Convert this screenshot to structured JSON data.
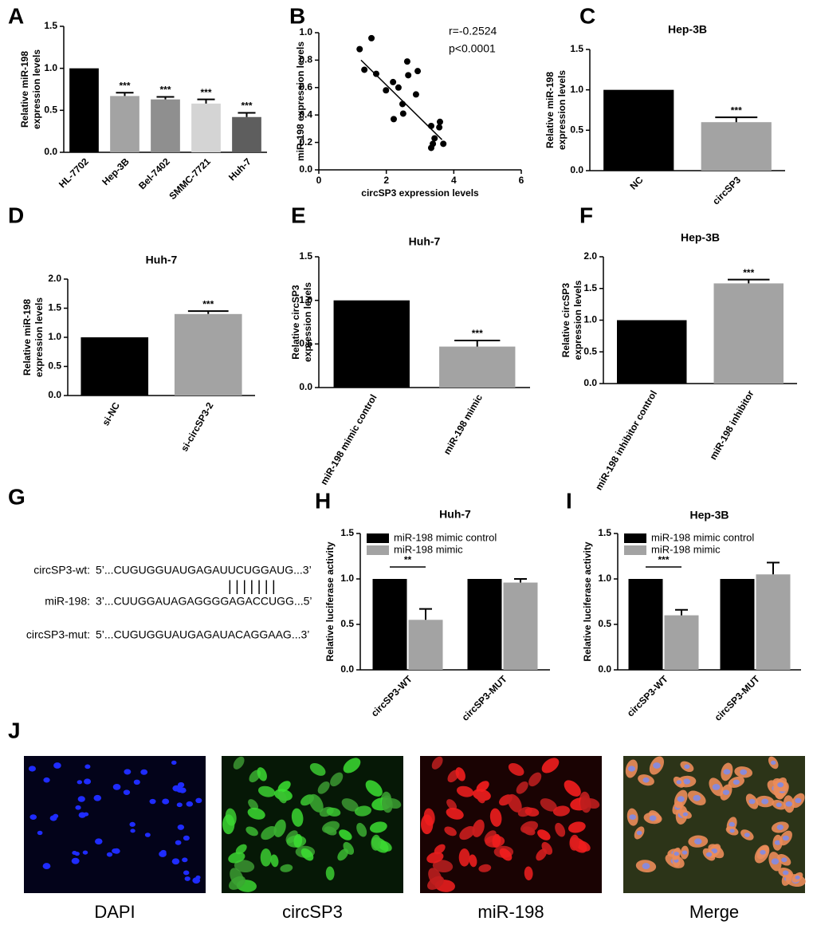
{
  "chart_data": [
    {
      "type": "bar",
      "panel": "A",
      "ylabel": [
        "Relative miR-198",
        "expression levels"
      ],
      "categories": [
        "HL-7702",
        "Hep-3B",
        "Bel-7402",
        "SMMC-7721",
        "Huh-7"
      ],
      "values": [
        1.0,
        0.67,
        0.63,
        0.58,
        0.42
      ],
      "errors": [
        null,
        0.04,
        0.03,
        0.05,
        0.05
      ],
      "colors": [
        "#000000",
        "#a3a3a3",
        "#8f8f8f",
        "#d4d4d4",
        "#5e5e5e"
      ],
      "significance": [
        null,
        "***",
        "***",
        "***",
        "***"
      ],
      "ylim": [
        0,
        1.5
      ],
      "yticks": [
        {
          "value": 0,
          "label": "0.0"
        },
        0.5,
        {
          "value": 1,
          "label": "1.0"
        },
        1.5
      ]
    },
    {
      "type": "scatter",
      "panel": "B",
      "xlabel": "circSP3 expression levels",
      "ylabel": [
        "miR-198 expression levels"
      ],
      "annotations": [
        "r=-0.2524",
        "p<0.0001"
      ],
      "x": [
        1.21,
        1.56,
        1.35,
        1.7,
        1.99,
        2.2,
        2.36,
        2.62,
        2.65,
        2.93,
        2.88,
        2.48,
        2.22,
        2.5,
        3.33,
        3.57,
        3.59,
        3.43,
        3.69,
        3.33,
        3.38
      ],
      "y": [
        0.88,
        0.96,
        0.73,
        0.7,
        0.58,
        0.64,
        0.6,
        0.79,
        0.69,
        0.72,
        0.55,
        0.48,
        0.37,
        0.41,
        0.32,
        0.31,
        0.35,
        0.23,
        0.19,
        0.16,
        0.19
      ],
      "fit_line": {
        "x": [
          1.25,
          3.65
        ],
        "y": [
          0.8,
          0.22
        ]
      },
      "color": "#000000",
      "xlim": [
        0,
        6
      ],
      "xticks": [
        0,
        2,
        4,
        6
      ],
      "ylim": [
        0,
        1
      ],
      "yticks": [
        {
          "value": 0,
          "label": "0.0"
        },
        0.2,
        0.4,
        0.6,
        0.8,
        {
          "value": 1,
          "label": "1.0"
        }
      ]
    },
    {
      "type": "bar",
      "panel": "C",
      "title": "Hep-3B",
      "ylabel": [
        "Relative miR-198",
        "expression levels"
      ],
      "categories": [
        "NC",
        "circSP3"
      ],
      "values": [
        1.0,
        0.6
      ],
      "errors": [
        null,
        0.06
      ],
      "colors": [
        "#000000",
        "#a3a3a3"
      ],
      "significance": [
        null,
        "***"
      ],
      "ylim": [
        0,
        1.5
      ],
      "yticks": [
        {
          "value": 0,
          "label": "0.0"
        },
        0.5,
        {
          "value": 1,
          "label": "1.0"
        },
        1.5
      ]
    },
    {
      "type": "bar",
      "panel": "D",
      "title": "Huh-7",
      "ylabel": [
        "Relative miR-198",
        "expression levels"
      ],
      "categories": [
        "si-NC",
        "si-circSP3-2"
      ],
      "values": [
        1.0,
        1.4
      ],
      "errors": [
        null,
        0.05
      ],
      "colors": [
        "#000000",
        "#a3a3a3"
      ],
      "significance": [
        null,
        "***"
      ],
      "ylim": [
        0,
        2
      ],
      "yticks": [
        {
          "value": 0,
          "label": "0.0"
        },
        0.5,
        {
          "value": 1,
          "label": "1.0"
        },
        1.5,
        {
          "value": 2,
          "label": "2.0"
        }
      ]
    },
    {
      "type": "bar",
      "panel": "E",
      "title": "Huh-7",
      "ylabel": [
        "Relative  circSP3",
        "expression levels"
      ],
      "categories": [
        "miR-198 mimic control",
        "miR-198 mimic"
      ],
      "values": [
        1.0,
        0.47
      ],
      "errors": [
        null,
        0.07
      ],
      "colors": [
        "#000000",
        "#a3a3a3"
      ],
      "significance": [
        null,
        "***"
      ],
      "ylim": [
        0,
        1.5
      ],
      "yticks": [
        {
          "value": 0,
          "label": "0.0"
        },
        0.5,
        {
          "value": 1,
          "label": "1.0"
        },
        1.5
      ]
    },
    {
      "type": "bar",
      "panel": "F",
      "title": "Hep-3B",
      "ylabel": [
        "Relative circSP3",
        "expression levels"
      ],
      "categories": [
        "miR-198 inhibitor control",
        "miR-198 inhibitor"
      ],
      "values": [
        1.0,
        1.58
      ],
      "errors": [
        null,
        0.06
      ],
      "colors": [
        "#000000",
        "#a3a3a3"
      ],
      "significance": [
        null,
        "***"
      ],
      "ylim": [
        0,
        2
      ],
      "yticks": [
        {
          "value": 0,
          "label": "0.0"
        },
        0.5,
        {
          "value": 1,
          "label": "1.0"
        },
        1.5,
        {
          "value": 2,
          "label": "2.0"
        }
      ]
    },
    {
      "type": "grouped_bar",
      "panel": "H",
      "title": "Huh-7",
      "ylabel": [
        "Relative luciferase activity"
      ],
      "categories": [
        "circSP3-WT",
        "circSP3-MUT"
      ],
      "series": [
        {
          "name": "miR-198 mimic control",
          "color": "#000000",
          "values": [
            1.0,
            1.0
          ],
          "errors": [
            null,
            null
          ]
        },
        {
          "name": "miR-198 mimic",
          "color": "#a3a3a3",
          "values": [
            0.55,
            0.96
          ],
          "errors": [
            0.12,
            0.04
          ]
        }
      ],
      "bracket": "**",
      "ylim": [
        0,
        1.5
      ],
      "yticks": [
        {
          "value": 0,
          "label": "0.0"
        },
        0.5,
        {
          "value": 1,
          "label": "1.0"
        },
        1.5
      ]
    },
    {
      "type": "grouped_bar",
      "panel": "I",
      "title": "Hep-3B",
      "ylabel": [
        "Relative luciferase activity"
      ],
      "categories": [
        "circSP3-WT",
        "circSP3-MUT"
      ],
      "series": [
        {
          "name": "miR-198 mimic control",
          "color": "#000000",
          "values": [
            1.0,
            1.0
          ],
          "errors": [
            null,
            null
          ]
        },
        {
          "name": "miR-198 mimic",
          "color": "#a3a3a3",
          "values": [
            0.6,
            1.05
          ],
          "errors": [
            0.06,
            0.13
          ]
        }
      ],
      "bracket": "***",
      "ylim": [
        0,
        1.5
      ],
      "yticks": [
        {
          "value": 0,
          "label": "0.0"
        },
        0.5,
        {
          "value": 1,
          "label": "1.0"
        },
        1.5
      ]
    }
  ],
  "sequences": {
    "panel": "G",
    "rows": [
      {
        "label": "circSP3-wt:",
        "sequence": "5’...CUGUGGUAUGAGAUUCUGGAUG...3’"
      },
      {
        "label": "miR-198:",
        "sequence": "3’...CUUGGAUAGAGGGGAGACCUGG...5’"
      },
      {
        "label": "circSP3-mut:",
        "sequence": "5’...CUGUGGUAUGAGAUACAGGAAG...3’"
      }
    ],
    "pairing": "|||||||"
  },
  "images": {
    "panel": "J",
    "captions": [
      "DAPI",
      "circSP3",
      "miR-198",
      "Merge"
    ]
  }
}
